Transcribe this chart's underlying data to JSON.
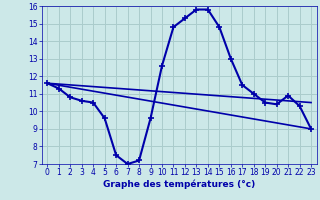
{
  "title": "Graphe des températures (°c)",
  "bg_color": "#cce8e8",
  "grid_color": "#aacccc",
  "line_color": "#0000aa",
  "xlim": [
    -0.5,
    23.5
  ],
  "ylim": [
    7,
    16
  ],
  "yticks": [
    7,
    8,
    9,
    10,
    11,
    12,
    13,
    14,
    15,
    16
  ],
  "xticks": [
    0,
    1,
    2,
    3,
    4,
    5,
    6,
    7,
    8,
    9,
    10,
    11,
    12,
    13,
    14,
    15,
    16,
    17,
    18,
    19,
    20,
    21,
    22,
    23
  ],
  "curve_x": [
    0,
    1,
    2,
    3,
    4,
    5,
    6,
    7,
    8,
    9,
    10,
    11,
    12,
    13,
    14,
    15,
    16,
    17,
    18,
    19,
    20,
    21,
    22,
    23
  ],
  "curve_y": [
    11.6,
    11.3,
    10.8,
    10.6,
    10.5,
    9.6,
    7.5,
    7.0,
    7.2,
    9.6,
    12.6,
    14.8,
    15.3,
    15.8,
    15.8,
    14.8,
    13.0,
    11.5,
    11.0,
    10.5,
    10.4,
    10.9,
    10.3,
    9.0
  ],
  "line1_x": [
    0,
    23
  ],
  "line1_y": [
    11.6,
    10.5
  ],
  "line2_x": [
    0,
    23
  ],
  "line2_y": [
    11.6,
    9.0
  ],
  "marker_size": 3
}
